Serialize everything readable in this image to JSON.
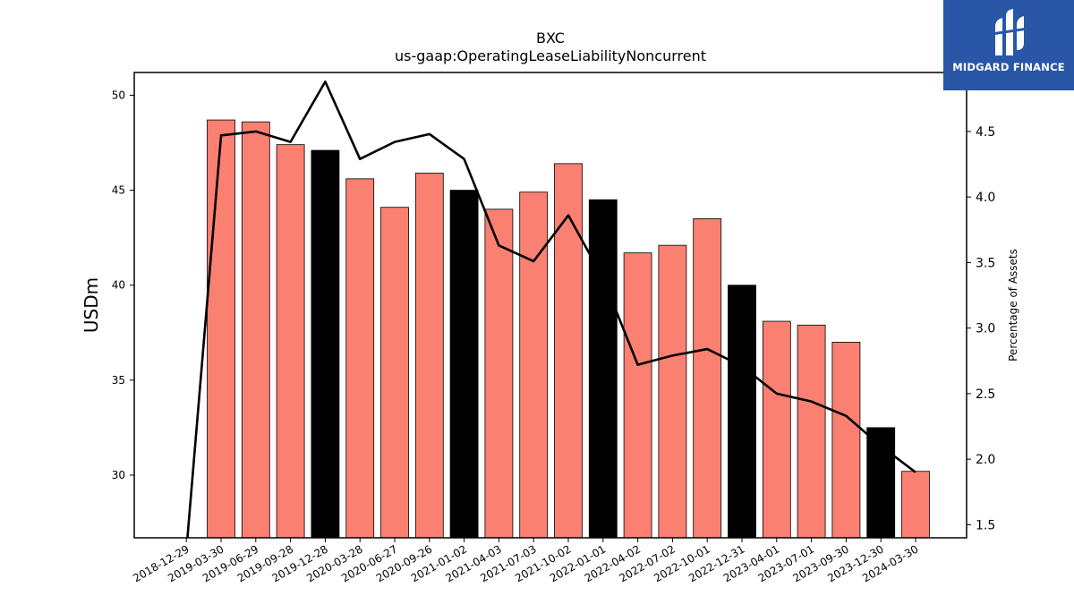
{
  "chart_data": {
    "type": "bar",
    "title": "BXC",
    "subtitle": "us-gaap:OperatingLeaseLiabilityNoncurrent",
    "ylabel": "USDm",
    "ylabel_right": "Percentage of Assets",
    "ylim": [
      26.7,
      51.2
    ],
    "ylim_right": [
      1.4,
      4.95
    ],
    "yticks": [
      30,
      35,
      40,
      45,
      50
    ],
    "yticks_right": [
      1.5,
      2.0,
      2.5,
      3.0,
      3.5,
      4.0,
      4.5
    ],
    "categories": [
      "2018-12-29",
      "2019-03-30",
      "2019-06-29",
      "2019-09-28",
      "2019-12-28",
      "2020-03-28",
      "2020-06-27",
      "2020-09-26",
      "2021-01-02",
      "2021-04-03",
      "2021-07-03",
      "2021-10-02",
      "2022-01-01",
      "2022-04-02",
      "2022-07-02",
      "2022-10-01",
      "2022-12-31",
      "2023-04-01",
      "2023-07-01",
      "2023-09-30",
      "2023-12-30",
      "2024-03-30"
    ],
    "series": [
      {
        "type": "bar",
        "values": [
          null,
          48.7,
          48.6,
          47.4,
          47.1,
          45.6,
          44.1,
          45.9,
          45.0,
          44.0,
          44.9,
          46.4,
          44.5,
          41.7,
          42.1,
          43.5,
          40.0,
          38.1,
          37.9,
          37.0,
          32.5,
          30.2
        ],
        "colors": [
          "#fa8072",
          "#fa8072",
          "#fa8072",
          "#fa8072",
          "#000000",
          "#fa8072",
          "#fa8072",
          "#fa8072",
          "#000000",
          "#fa8072",
          "#fa8072",
          "#fa8072",
          "#000000",
          "#fa8072",
          "#fa8072",
          "#fa8072",
          "#000000",
          "#fa8072",
          "#fa8072",
          "#fa8072",
          "#000000",
          "#fa8072"
        ]
      },
      {
        "type": "line",
        "axis": "right",
        "color": "#000000",
        "values": [
          1.3,
          4.47,
          4.5,
          4.42,
          4.88,
          4.29,
          4.42,
          4.48,
          4.29,
          3.63,
          3.51,
          3.86,
          3.38,
          2.72,
          2.79,
          2.84,
          2.71,
          2.5,
          2.44,
          2.33,
          2.1,
          1.9
        ]
      }
    ],
    "grid": false,
    "legend": "none"
  },
  "logo": {
    "name": "MIDGARD FINANCE",
    "background": "#2a56a8"
  }
}
